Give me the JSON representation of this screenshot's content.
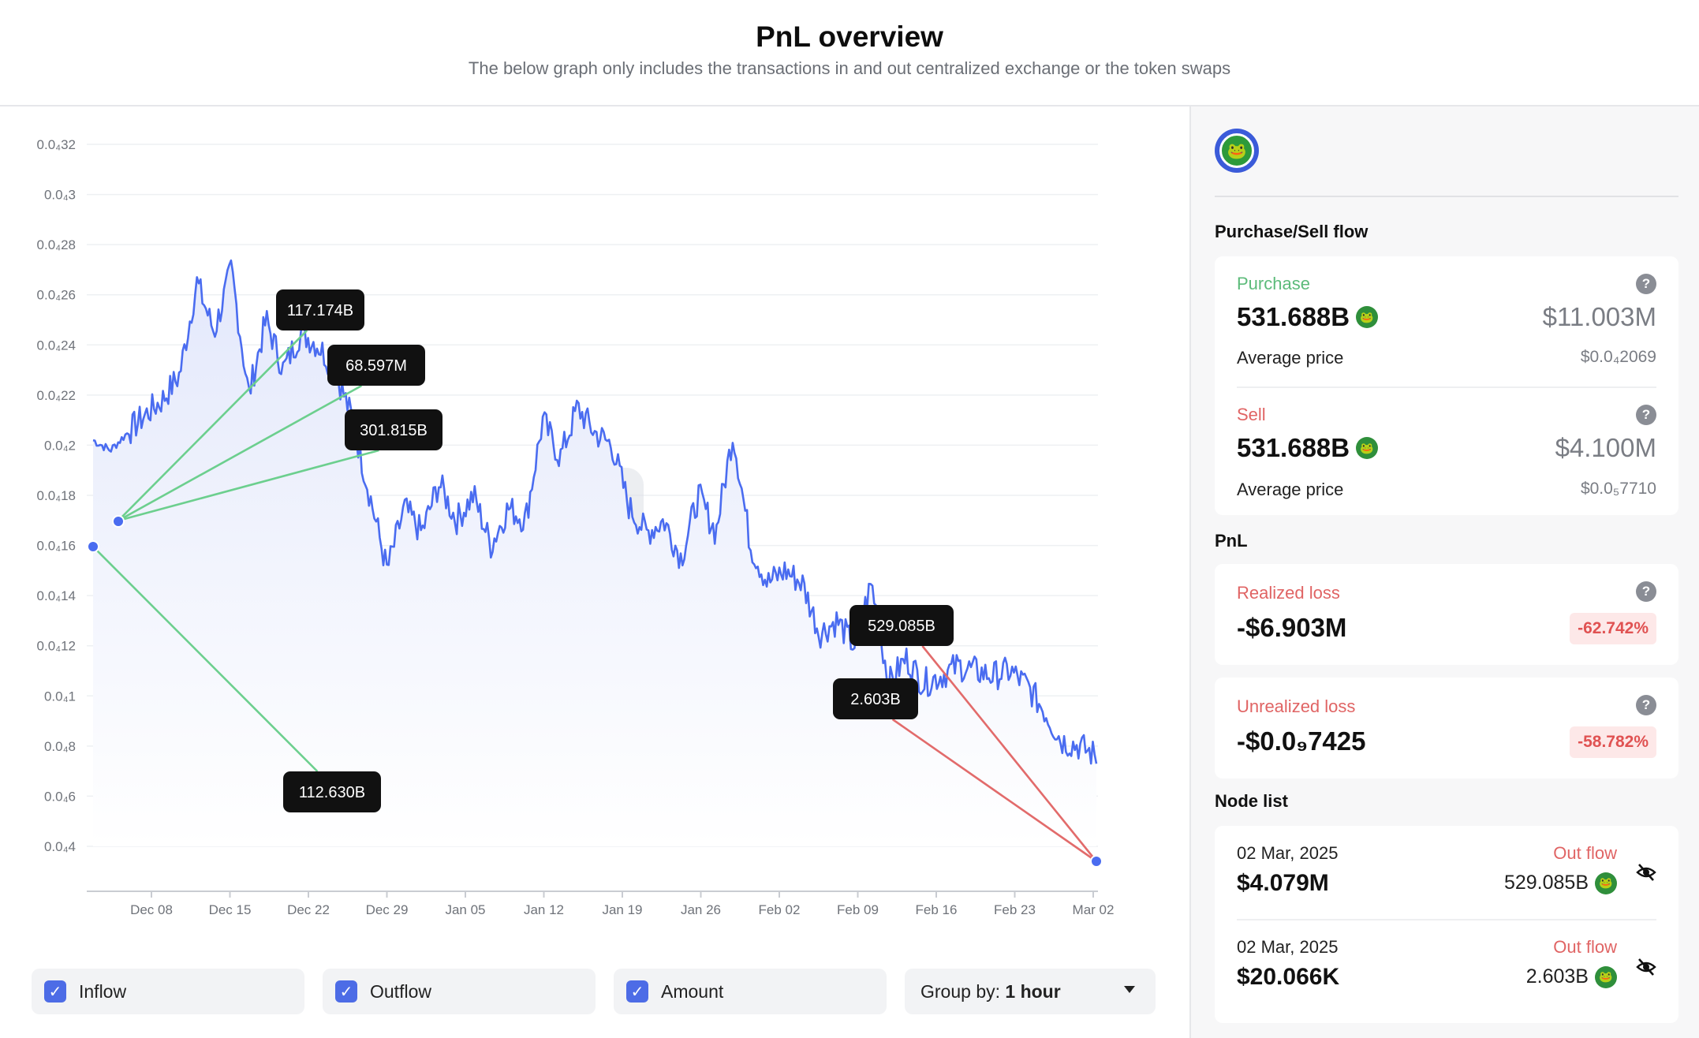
{
  "header": {
    "title": "PnL overview",
    "subtitle": "The below graph only includes the transactions in and out centralized exchange or the token swaps"
  },
  "chart_data": {
    "type": "area",
    "y_ticks": [
      "0.0₄4",
      "0.0₄6",
      "0.0₄8",
      "0.0₄1",
      "0.0₄12",
      "0.0₄14",
      "0.0₄16",
      "0.0₄18",
      "0.0₄2",
      "0.0₄22",
      "0.0₄24",
      "0.0₄26",
      "0.0₄28",
      "0.0₄3",
      "0.0₄32"
    ],
    "ylim": [
      4e-06,
      3.2e-05
    ],
    "x_ticks": [
      "Dec 08",
      "Dec 15",
      "Dec 22",
      "Dec 29",
      "Jan 05",
      "Jan 12",
      "Jan 19",
      "Jan 26",
      "Feb 02",
      "Feb 09",
      "Feb 16",
      "Feb 23",
      "Mar 02"
    ],
    "series": [
      {
        "values": [
          2.02e-05,
          1.98e-05,
          2.05e-05,
          2.12e-05,
          2.18e-05,
          2.28e-05,
          2.65e-05,
          2.45e-05,
          2.7e-05,
          2.2e-05,
          2.5e-05,
          2.3e-05,
          2.45e-05,
          2.4e-05,
          2.3e-05,
          2.1e-05,
          1.8e-05,
          1.5e-05,
          1.75e-05,
          1.65e-05,
          1.85e-05,
          1.7e-05,
          1.8e-05,
          1.6e-05,
          1.75e-05,
          1.7e-05,
          2.1e-05,
          1.95e-05,
          2.15e-05,
          2.05e-05,
          2e-05,
          1.75e-05,
          1.65e-05,
          1.7e-05,
          1.55e-05,
          1.8e-05,
          1.65e-05,
          2.05e-05,
          1.6e-05,
          1.45e-05,
          1.5e-05,
          1.45e-05,
          1.25e-05,
          1.3e-05,
          1.2e-05,
          1.45e-05,
          1.05e-05,
          1.15e-05,
          1.05e-05,
          1.08e-05,
          1.12e-05,
          1.1e-05,
          1.08e-05,
          1.1e-05,
          1.04e-05,
          9.4e-06,
          8.2e-06,
          8e-06,
          7.6e-06
        ]
      }
    ],
    "annotations": [
      {
        "label": "117.174B",
        "kind": "inflow"
      },
      {
        "label": "68.597M",
        "kind": "inflow"
      },
      {
        "label": "301.815B",
        "kind": "inflow"
      },
      {
        "label": "112.630B",
        "kind": "inflow"
      },
      {
        "label": "529.085B",
        "kind": "outflow"
      },
      {
        "label": "2.603B",
        "kind": "outflow"
      }
    ],
    "watermark": "SPOTONCHAIN",
    "colors": {
      "line": "#4a6cf0",
      "inflow": "#6ccf8e",
      "outflow": "#e26b6b",
      "area_top": "#e3e8fb"
    }
  },
  "controls": {
    "inflow_label": "Inflow",
    "outflow_label": "Outflow",
    "amount_label": "Amount",
    "group_prefix": "Group by: ",
    "group_value": "1 hour",
    "check_glyph": "✓"
  },
  "panel": {
    "purchase_sell_title": "Purchase/Sell flow",
    "purchase": {
      "label": "Purchase",
      "amount": "531.688B",
      "usd": "$11.003M",
      "avg_label": "Average price",
      "avg_value": "$0.0₄2069"
    },
    "sell": {
      "label": "Sell",
      "amount": "531.688B",
      "usd": "$4.100M",
      "avg_label": "Average price",
      "avg_value": "$0.0₅7710"
    },
    "pnl_title": "PnL",
    "realized": {
      "label": "Realized loss",
      "value": "-$6.903M",
      "pct": "-62.742%"
    },
    "unrealized": {
      "label": "Unrealized loss",
      "value": "-$0.0₉7425",
      "pct": "-58.782%"
    },
    "node_list_title": "Node list",
    "nodes": [
      {
        "date": "02 Mar, 2025",
        "usd": "$4.079M",
        "flow": "Out flow",
        "amount": "529.085B"
      },
      {
        "date": "02 Mar, 2025",
        "usd": "$20.066K",
        "flow": "Out flow",
        "amount": "2.603B"
      }
    ],
    "qmark": "?"
  }
}
